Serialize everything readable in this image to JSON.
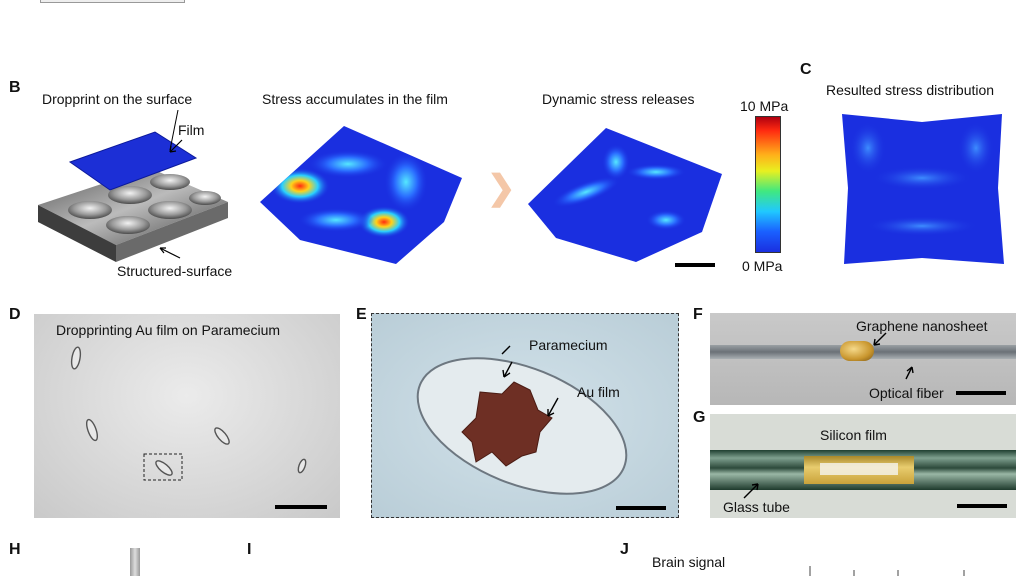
{
  "panels": {
    "b": {
      "label": "B",
      "captions": [
        "Dropprint on the surface",
        "Stress accumulates in the film",
        "Dynamic stress releases"
      ],
      "film_label": "Film",
      "surface_label": "Structured-surface",
      "colorbar_max": "10 MPa",
      "colorbar_min": "0 MPa"
    },
    "c": {
      "label": "C",
      "caption": "Resulted stress distribution"
    },
    "d": {
      "label": "D",
      "caption": "Dropprinting Au film on Paramecium"
    },
    "e": {
      "label": "E",
      "paramecium_label": "Paramecium",
      "au_label": "Au film"
    },
    "f": {
      "label": "F",
      "graphene_label": "Graphene nanosheet",
      "fiber_label": "Optical fiber"
    },
    "g": {
      "label": "G",
      "silicon_label": "Silicon film",
      "glass_label": "Glass tube"
    },
    "h": {
      "label": "H"
    },
    "i": {
      "label": "I"
    },
    "j": {
      "label": "J",
      "caption": "Brain signal"
    }
  },
  "colors": {
    "stress_low": "#1a2fe0",
    "stress_high": "#e0201a",
    "arrow": "#f4c7a8",
    "gold": "#c9a23a"
  }
}
